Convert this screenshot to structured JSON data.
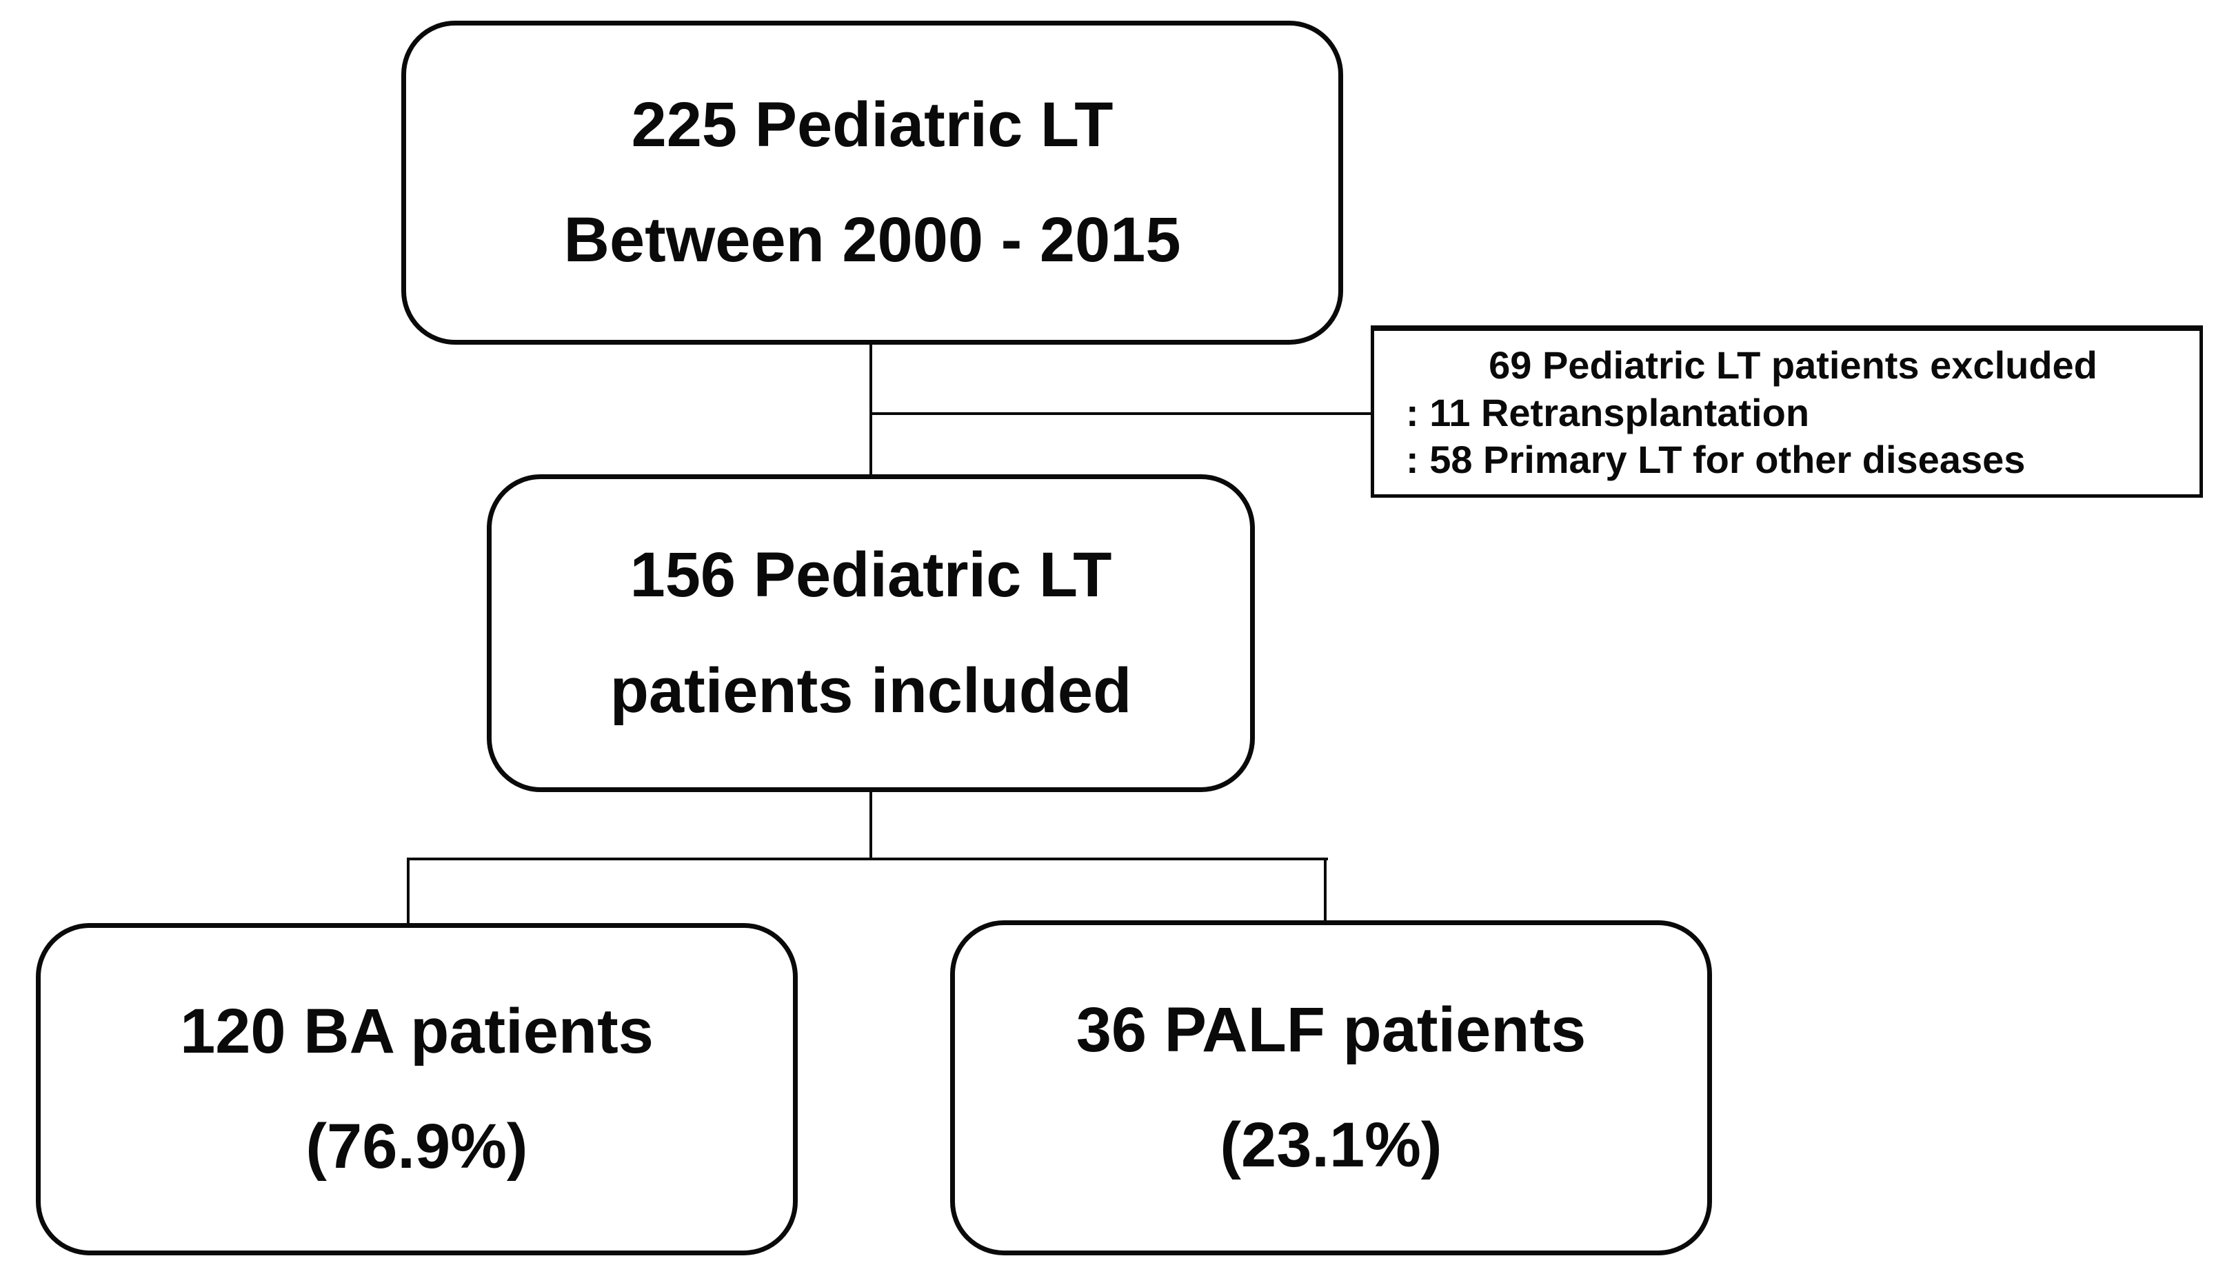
{
  "figure": {
    "type": "patient-flow-diagram",
    "background_color": "#ffffff",
    "line_color": "#0a0a0a",
    "text_color": "#0a0a0a"
  },
  "boxes": {
    "total": {
      "line1": "225 Pediatric LT",
      "line2": "Between 2000 - 2015"
    },
    "excluded": {
      "title": "69 Pediatric LT patients excluded",
      "item1": ": 11 Retransplantation",
      "item2": ": 58 Primary LT for other diseases"
    },
    "included": {
      "line1": "156 Pediatric LT",
      "line2": "patients included"
    },
    "ba": {
      "line1": "120 BA patients",
      "line2": "(76.9%)"
    },
    "palf": {
      "line1": "36 PALF patients",
      "line2": "(23.1%)"
    }
  }
}
